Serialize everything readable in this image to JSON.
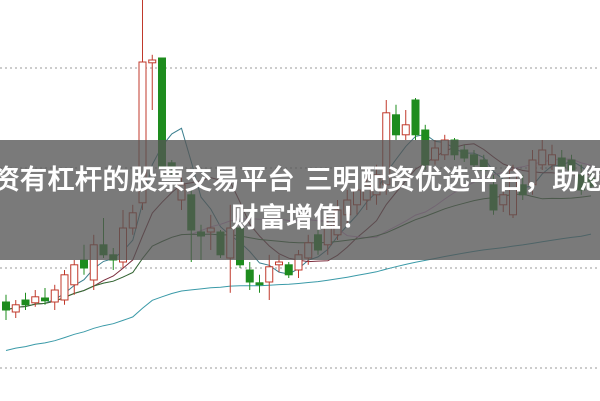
{
  "headline": {
    "line1": "资有杠杆的股票交易平台 三明配资优选平台，助您",
    "line2": "财富增值！"
  },
  "colors": {
    "up": "#c0392b",
    "down": "#1e8c1e",
    "ma5": "#3b7f8f",
    "ma10": "#7a2a3a",
    "ma20": "#d9a0d8",
    "ma40": "#2f6b2f",
    "ma_long": "#3a9aa8",
    "grid": "#999999",
    "banner": "#555555"
  },
  "chart_data": {
    "type": "candlestick",
    "title": "",
    "grid": true,
    "ylim": [
      0,
      100
    ],
    "moving_averages": [
      5,
      10,
      20,
      40,
      60
    ],
    "candles": [
      [
        24.5,
        26.3,
        20,
        22.5
      ],
      [
        22,
        25,
        20.5,
        23.8
      ],
      [
        25,
        26.8,
        22.5,
        23.8
      ],
      [
        24.3,
        27.5,
        23.3,
        25.8
      ],
      [
        25.5,
        28,
        23.8,
        24.8
      ],
      [
        24.5,
        28.8,
        22.5,
        27.5
      ],
      [
        25,
        32.5,
        23.8,
        31.3
      ],
      [
        28.8,
        35,
        26.3,
        33.8
      ],
      [
        35,
        38.8,
        31.3,
        33
      ],
      [
        30,
        41.3,
        27.5,
        38.8
      ],
      [
        38.8,
        45.5,
        35.5,
        36.3
      ],
      [
        36.3,
        38,
        32.5,
        35
      ],
      [
        34.5,
        47.5,
        33,
        43
      ],
      [
        43,
        48.8,
        41.3,
        46.8
      ],
      [
        49.3,
        100,
        47.5,
        84.5
      ],
      [
        84.3,
        86.3,
        72.5,
        85
      ],
      [
        85.5,
        85.5,
        58,
        58
      ],
      [
        59.3,
        60,
        56.3,
        58.3
      ],
      [
        50,
        56.3,
        47.5,
        53.8
      ],
      [
        51.3,
        52.5,
        34.5,
        42.5
      ],
      [
        42,
        43.8,
        35,
        41
      ],
      [
        42,
        46.3,
        37.5,
        43
      ],
      [
        42,
        42.5,
        35.5,
        36.3
      ],
      [
        35.5,
        48.8,
        26.8,
        43
      ],
      [
        43,
        43.8,
        33,
        33.8
      ],
      [
        32.5,
        34.5,
        27.5,
        29.5
      ],
      [
        29.3,
        31.3,
        26.8,
        28.8
      ],
      [
        29.5,
        36.3,
        25,
        33.3
      ],
      [
        33.8,
        36.3,
        32,
        34.5
      ],
      [
        33.8,
        34.5,
        30.5,
        31.3
      ],
      [
        32.5,
        37.5,
        30.5,
        36.3
      ],
      [
        35.5,
        41.3,
        33.8,
        39.3
      ],
      [
        41.3,
        42.5,
        36.3,
        37.5
      ],
      [
        38.8,
        46.3,
        36.3,
        43.8
      ],
      [
        41.3,
        50,
        40,
        47.5
      ],
      [
        46.3,
        52.5,
        43.8,
        50
      ],
      [
        48.8,
        55,
        46.3,
        52.5
      ],
      [
        50,
        56.3,
        47.5,
        53.8
      ],
      [
        51.3,
        58.8,
        48.8,
        56.3
      ],
      [
        53.8,
        75,
        51.3,
        71.8
      ],
      [
        71.3,
        73.8,
        65,
        66.3
      ],
      [
        66.3,
        72.5,
        65,
        68.8
      ],
      [
        75,
        75.5,
        65,
        66.3
      ],
      [
        67.5,
        68.8,
        57.5,
        58.8
      ],
      [
        60,
        65,
        58.8,
        63
      ],
      [
        61.3,
        66.3,
        60,
        65
      ],
      [
        65,
        65.5,
        60,
        61.3
      ],
      [
        62.5,
        63.8,
        59.5,
        60.5
      ],
      [
        61.3,
        62.5,
        57.5,
        58.8
      ],
      [
        60,
        61.3,
        56.3,
        57.5
      ],
      [
        53.8,
        56.3,
        46.3,
        47.5
      ],
      [
        48.8,
        53.8,
        47,
        51.3
      ],
      [
        46.3,
        58.8,
        45.5,
        57.5
      ],
      [
        53.8,
        56.3,
        50,
        51.3
      ],
      [
        53.8,
        62.5,
        51.3,
        60
      ],
      [
        58.8,
        65,
        57.5,
        62.5
      ],
      [
        58.8,
        63.8,
        57.5,
        61.3
      ],
      [
        60.5,
        62.5,
        57,
        58
      ],
      [
        60,
        61.3,
        56.3,
        57.5
      ],
      [
        56.3,
        58.8,
        51.3,
        52.5
      ],
      [
        55.5,
        57,
        52.5,
        53.5
      ]
    ]
  }
}
